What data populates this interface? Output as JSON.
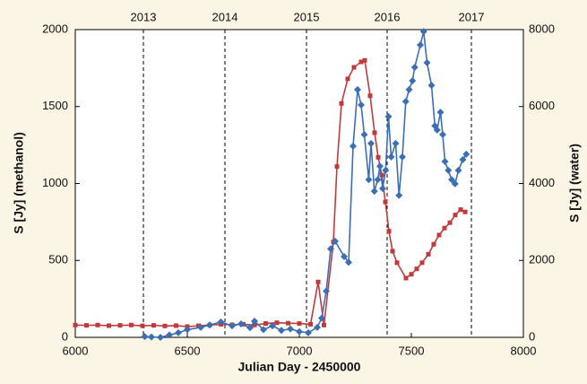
{
  "chart_data": {
    "type": "line",
    "xlabel": "Julian Day - 2450000",
    "ylabel": "S [Jy] (methanol)",
    "y2label": "S [Jy] (water)",
    "xlim": [
      6000,
      8000
    ],
    "xticks": [
      6000,
      6500,
      7000,
      7500,
      8000
    ],
    "ylim": [
      0,
      2000
    ],
    "yticks": [
      0,
      500,
      1000,
      1500,
      2000
    ],
    "y2lim": [
      0,
      8000
    ],
    "y2ticks": [
      0,
      2000,
      4000,
      6000,
      8000
    ],
    "year_lines": [
      {
        "value": 6304,
        "label": "2013"
      },
      {
        "value": 6668,
        "label": "2014"
      },
      {
        "value": 7032,
        "label": "2015"
      },
      {
        "value": 7392,
        "label": "2016"
      },
      {
        "value": 7768,
        "label": "2017"
      }
    ],
    "series": [
      {
        "name": "methanol",
        "color": "#c0393b",
        "marker": "square",
        "x": [
          6000,
          6050,
          6100,
          6150,
          6200,
          6250,
          6300,
          6350,
          6400,
          6450,
          6500,
          6550,
          6600,
          6650,
          6700,
          6750,
          6800,
          6850,
          6900,
          6950,
          7000,
          7050,
          7084,
          7110,
          7152,
          7168,
          7188,
          7216,
          7244,
          7276,
          7292,
          7316,
          7336,
          7352,
          7368,
          7384,
          7400,
          7416,
          7436,
          7476,
          7500,
          7524,
          7548,
          7576,
          7600,
          7624,
          7648,
          7672,
          7696,
          7720,
          7740
        ],
        "values": [
          80,
          78,
          80,
          76,
          78,
          80,
          75,
          78,
          74,
          76,
          70,
          75,
          80,
          85,
          82,
          85,
          80,
          90,
          95,
          92,
          90,
          85,
          360,
          80,
          620,
          1110,
          1520,
          1680,
          1755,
          1790,
          1800,
          1570,
          1330,
          1170,
          1055,
          880,
          690,
          560,
          485,
          385,
          410,
          445,
          485,
          540,
          605,
          665,
          710,
          745,
          795,
          830,
          815
        ]
      },
      {
        "name": "water",
        "color": "#3c6eb4",
        "marker": "diamond",
        "axis": "y2",
        "x": [
          6310,
          6340,
          6380,
          6420,
          6460,
          6500,
          6560,
          6600,
          6650,
          6700,
          6740,
          6780,
          6800,
          6840,
          6880,
          6920,
          6960,
          7000,
          7040,
          7080,
          7100,
          7120,
          7140,
          7160,
          7200,
          7220,
          7240,
          7260,
          7276,
          7290,
          7310,
          7320,
          7335,
          7350,
          7360,
          7372,
          7385,
          7398,
          7410,
          7430,
          7445,
          7460,
          7475,
          7490,
          7505,
          7515,
          7540,
          7555,
          7570,
          7590,
          7605,
          7615,
          7630,
          7640,
          7650,
          7665,
          7680,
          7695,
          7710,
          7730,
          7745
        ],
        "values": [
          20,
          10,
          0,
          60,
          120,
          200,
          260,
          320,
          400,
          300,
          350,
          250,
          420,
          200,
          300,
          180,
          220,
          150,
          120,
          260,
          500,
          1200,
          2300,
          2500,
          2100,
          1950,
          4970,
          6440,
          6040,
          5270,
          4100,
          5040,
          3800,
          4100,
          4450,
          3870,
          4340,
          5740,
          4690,
          5040,
          3690,
          4690,
          6130,
          6440,
          6670,
          7020,
          7600,
          7950,
          7140,
          6550,
          5500,
          5390,
          5850,
          5270,
          4570,
          4340,
          4100,
          3990,
          4340,
          4620,
          4760
        ]
      }
    ]
  }
}
